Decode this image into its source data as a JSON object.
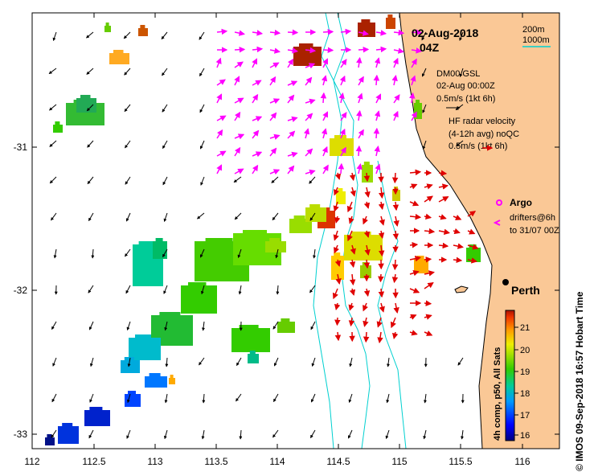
{
  "title": {
    "date": "02-Aug-2018",
    "time": "04Z"
  },
  "scale_bar": {
    "label_200": "200m",
    "label_1000": "1000m"
  },
  "wind_legend": {
    "source": "DM00 GSL",
    "time": "02-Aug 00:00Z",
    "scale": "0.5m/s (1kt 6h)"
  },
  "radar_legend": {
    "title": "HF radar velocity",
    "subtitle": "(4-12h avg) noQC",
    "scale": "0.5m/s (1kt 6h)"
  },
  "argo_legend": {
    "label": "Argo"
  },
  "drifter_legend": {
    "line1": "drifters@6h",
    "line2": "to 31/07 00Z"
  },
  "city": {
    "name": "Perth"
  },
  "colorbar": {
    "title": "4h comp, p50, All Sats",
    "ticks": [
      "16",
      "17",
      "18",
      "19",
      "20",
      "21"
    ]
  },
  "credit": "© IMOS 09-Sep-2018 16:57 Hobart Time",
  "axes": {
    "x_ticks": [
      "112",
      "112.5",
      "113",
      "113.5",
      "114",
      "114.5",
      "115",
      "115.5",
      "116"
    ],
    "y_ticks": [
      "-31",
      "-32",
      "-33"
    ]
  },
  "colors": {
    "land": "#fac896",
    "bathymetry": "#00d0d0",
    "radar_vectors": "#e00000",
    "drifters": "#ff00ff",
    "wind_vectors": "#000000"
  }
}
